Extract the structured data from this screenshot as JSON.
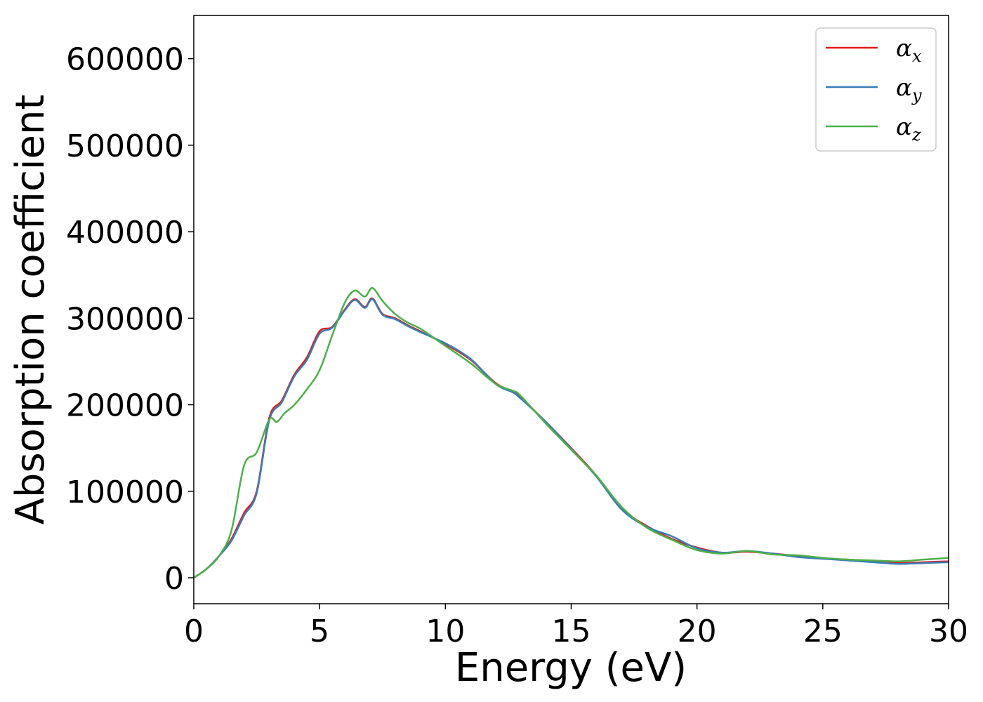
{
  "chart_data": {
    "type": "line",
    "title": "",
    "xlabel": "Energy (eV)",
    "ylabel": "Absorption coefficient",
    "xlim": [
      0,
      30
    ],
    "ylim": [
      -30000,
      650000
    ],
    "x_ticks": [
      0,
      5,
      10,
      15,
      20,
      25,
      30
    ],
    "y_ticks": [
      0,
      100000,
      200000,
      300000,
      400000,
      500000,
      600000
    ],
    "grid": false,
    "legend_position": "top-right",
    "series": [
      {
        "name": "α_x",
        "label_main": "α",
        "label_sub": "x",
        "color": "#e41a1c",
        "x": [
          0,
          0.5,
          1.0,
          1.5,
          2.0,
          2.5,
          3.0,
          3.5,
          4.0,
          4.5,
          5.0,
          5.5,
          6.0,
          6.4,
          6.8,
          7.1,
          7.5,
          8.0,
          8.5,
          9.0,
          10.0,
          11.0,
          12.0,
          12.7,
          13.0,
          14.0,
          15.0,
          16.0,
          17.0,
          18.0,
          19.0,
          20.0,
          21.0,
          22.0,
          23.0,
          24.0,
          25.0,
          26.0,
          27.0,
          28.0,
          29.0,
          30.0
        ],
        "values": [
          0,
          10000,
          25000,
          45000,
          75000,
          100000,
          185000,
          205000,
          235000,
          255000,
          285000,
          290000,
          310000,
          322000,
          313000,
          323000,
          305000,
          300000,
          292000,
          285000,
          270000,
          252000,
          225000,
          215000,
          208000,
          180000,
          150000,
          118000,
          80000,
          60000,
          45000,
          35000,
          29000,
          30000,
          28000,
          25000,
          22000,
          21000,
          19000,
          17000,
          18000,
          19000
        ]
      },
      {
        "name": "α_y",
        "label_main": "α",
        "label_sub": "y",
        "color": "#377eb8",
        "x": [
          0,
          0.5,
          1.0,
          1.5,
          2.0,
          2.5,
          3.0,
          3.5,
          4.0,
          4.5,
          5.0,
          5.5,
          6.0,
          6.4,
          6.8,
          7.1,
          7.5,
          8.0,
          8.5,
          9.0,
          10.0,
          11.0,
          12.0,
          12.7,
          13.0,
          14.0,
          15.0,
          16.0,
          17.0,
          18.0,
          19.0,
          20.0,
          21.0,
          22.0,
          23.0,
          24.0,
          25.0,
          26.0,
          27.0,
          28.0,
          29.0,
          30.0
        ],
        "values": [
          0,
          10000,
          25000,
          43000,
          72000,
          98000,
          182000,
          203000,
          233000,
          252000,
          282000,
          289000,
          309000,
          321000,
          312000,
          322000,
          304000,
          299000,
          291000,
          284000,
          271000,
          253000,
          224000,
          214000,
          207000,
          180000,
          149000,
          117000,
          79000,
          59000,
          48000,
          34000,
          29000,
          31000,
          28000,
          24000,
          22000,
          20000,
          18000,
          16000,
          17000,
          18000
        ]
      },
      {
        "name": "α_z",
        "label_main": "α",
        "label_sub": "z",
        "color": "#4daf4a",
        "x": [
          0,
          0.5,
          1.0,
          1.5,
          2.0,
          2.5,
          3.0,
          3.3,
          3.6,
          4.0,
          4.5,
          5.0,
          5.5,
          6.0,
          6.4,
          6.8,
          7.1,
          7.5,
          8.0,
          8.5,
          9.0,
          10.0,
          11.0,
          12.0,
          12.7,
          13.0,
          14.0,
          15.0,
          16.0,
          17.0,
          18.0,
          19.0,
          20.0,
          21.0,
          22.0,
          23.0,
          24.0,
          25.0,
          26.0,
          27.0,
          28.0,
          29.0,
          30.0
        ],
        "values": [
          0,
          10000,
          25000,
          55000,
          130000,
          145000,
          183000,
          180000,
          190000,
          200000,
          218000,
          240000,
          280000,
          318000,
          332000,
          325000,
          335000,
          320000,
          305000,
          295000,
          288000,
          268000,
          248000,
          224000,
          216000,
          210000,
          178000,
          148000,
          118000,
          82000,
          58000,
          44000,
          32000,
          28000,
          31000,
          27000,
          26000,
          23000,
          21000,
          20000,
          19000,
          21000,
          23000
        ]
      }
    ]
  }
}
